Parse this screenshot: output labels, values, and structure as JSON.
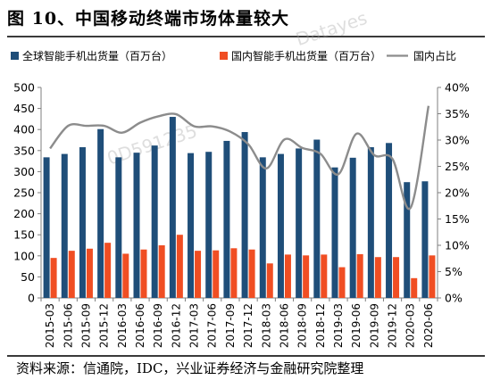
{
  "page": {
    "title": "图 10、中国移动终端市场体量较大",
    "source": "资料来源：信通院，IDC，兴业证券经济与金融研究院整理"
  },
  "colors": {
    "global_bar": "#1f4e79",
    "domestic_bar": "#f04e23",
    "share_line": "#8c8c8c",
    "axis": "#7f7f7f"
  },
  "chart_data": {
    "type": "bar",
    "title": "",
    "xlabel": "",
    "ylabel": "",
    "categories": [
      "2015-03",
      "2015-06",
      "2015-09",
      "2015-12",
      "2016-03",
      "2016-06",
      "2016-09",
      "2016-12",
      "2017-03",
      "2017-06",
      "2017-09",
      "2017-12",
      "2018-03",
      "2018-06",
      "2018-09",
      "2018-12",
      "2019-03",
      "2019-06",
      "2019-09",
      "2019-12",
      "2020-03",
      "2020-06"
    ],
    "ylim": [
      0,
      500
    ],
    "y_ticks": [
      "0",
      "50",
      "100",
      "150",
      "200",
      "250",
      "300",
      "350",
      "400",
      "450",
      "500"
    ],
    "y2lim": [
      0,
      40
    ],
    "y2_ticks": [
      "0%",
      "5%",
      "10%",
      "15%",
      "20%",
      "25%",
      "30%",
      "35%",
      "40%"
    ],
    "legend_position": "top",
    "series": [
      {
        "name": "全球智能手机出货量（百万台）",
        "type": "bar",
        "axis": "left",
        "values": [
          334,
          342,
          358,
          401,
          334,
          345,
          362,
          430,
          344,
          347,
          373,
          394,
          334,
          342,
          355,
          376,
          310,
          333,
          358,
          368,
          275,
          277
        ]
      },
      {
        "name": "国内智能手机出货量（百万台）",
        "type": "bar",
        "axis": "left",
        "values": [
          95,
          112,
          117,
          131,
          105,
          115,
          125,
          150,
          112,
          113,
          118,
          115,
          82,
          103,
          101,
          103,
          73,
          104,
          97,
          97,
          47,
          101
        ]
      },
      {
        "name": "国内占比",
        "type": "line",
        "axis": "right",
        "values": [
          28.4,
          32.7,
          32.7,
          32.7,
          31.4,
          33.3,
          34.5,
          34.9,
          32.6,
          32.6,
          31.6,
          29.2,
          24.6,
          30.1,
          28.5,
          27.4,
          23.5,
          31.2,
          27.1,
          26.4,
          17.1,
          36.5
        ]
      }
    ]
  }
}
